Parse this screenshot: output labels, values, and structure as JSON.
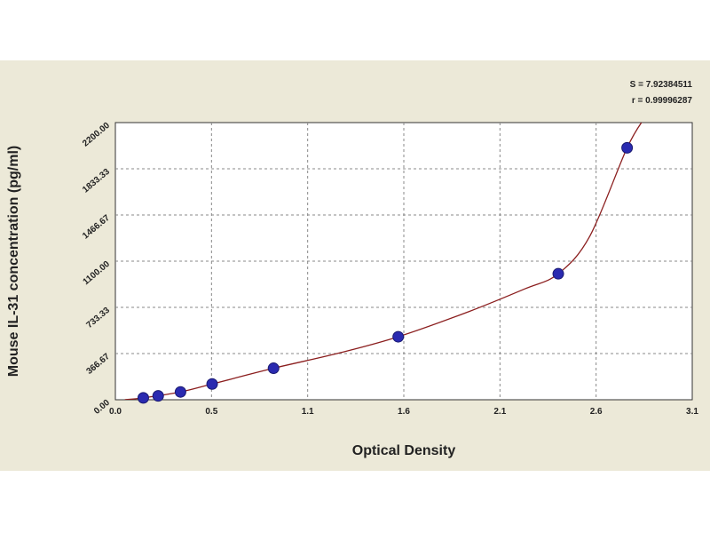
{
  "chart_data": {
    "type": "scatter",
    "xlabel": "Optical Density",
    "ylabel": "Mouse IL-31 concentration (pg/ml)",
    "xlim": [
      0.0,
      3.1
    ],
    "ylim": [
      0,
      2200
    ],
    "x_ticks": [
      "0.0",
      "0.5",
      "1.1",
      "1.6",
      "2.1",
      "2.6",
      "3.1"
    ],
    "y_ticks": [
      "0.00",
      "366.67",
      "733.33",
      "1100.00",
      "1466.67",
      "1833.33",
      "2200.00"
    ],
    "stats": [
      "S = 7.92384511",
      "r = 0.99996287"
    ],
    "grid": true,
    "points": {
      "x": [
        0.15,
        0.23,
        0.35,
        0.52,
        0.85,
        1.52,
        2.38,
        2.75
      ],
      "y": [
        15,
        31,
        62,
        125,
        250,
        500,
        1000,
        2000
      ]
    },
    "fit_curve": {
      "x": [
        0.05,
        0.15,
        0.35,
        0.52,
        0.85,
        1.2,
        1.52,
        1.9,
        2.2,
        2.38,
        2.55,
        2.75,
        2.85
      ],
      "y": [
        0,
        15,
        62,
        125,
        250,
        370,
        500,
        700,
        880,
        1000,
        1300,
        2000,
        2250
      ]
    },
    "colors": {
      "marker": "#2a2ab0",
      "curve": "#8b1e1e",
      "grid": "#888888"
    }
  }
}
